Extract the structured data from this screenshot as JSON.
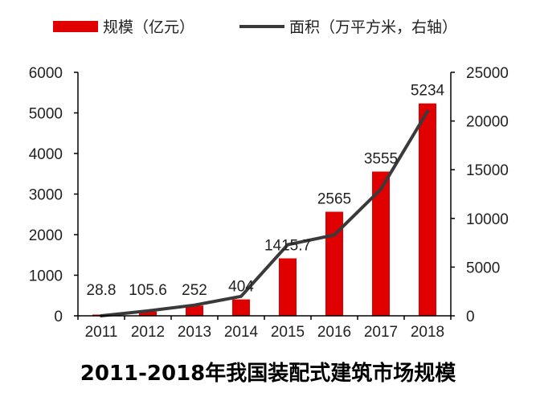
{
  "chart_data": {
    "type": "bar+line",
    "title": "2011-2018年我国装配式建筑市场规模",
    "categories": [
      "2011",
      "2012",
      "2013",
      "2014",
      "2015",
      "2016",
      "2017",
      "2018"
    ],
    "series": [
      {
        "name": "规模（亿元）",
        "type": "bar",
        "axis": "left",
        "values": [
          28.8,
          105.6,
          252,
          404,
          1415.7,
          2565,
          3555,
          5234
        ],
        "labels": [
          "28.8",
          "105.6",
          "252",
          "404",
          "1415.7",
          "2565",
          "3555",
          "5234"
        ]
      },
      {
        "name": "面积（万平方米，右轴）",
        "type": "line",
        "axis": "right",
        "values": [
          0,
          500,
          1100,
          2000,
          7300,
          8300,
          13000,
          21000
        ]
      }
    ],
    "y_left": {
      "min": 0,
      "max": 6000,
      "ticks": [
        "0",
        "1000",
        "2000",
        "3000",
        "4000",
        "5000",
        "6000"
      ]
    },
    "y_right": {
      "min": 0,
      "max": 25000,
      "ticks": [
        "0",
        "5000",
        "10000",
        "15000",
        "20000",
        "25000"
      ]
    },
    "legend_position": "top",
    "grid": false
  },
  "colors": {
    "bar": "#e00000",
    "line": "#3a3a3a",
    "axis": "#000000",
    "text": "#222222"
  }
}
